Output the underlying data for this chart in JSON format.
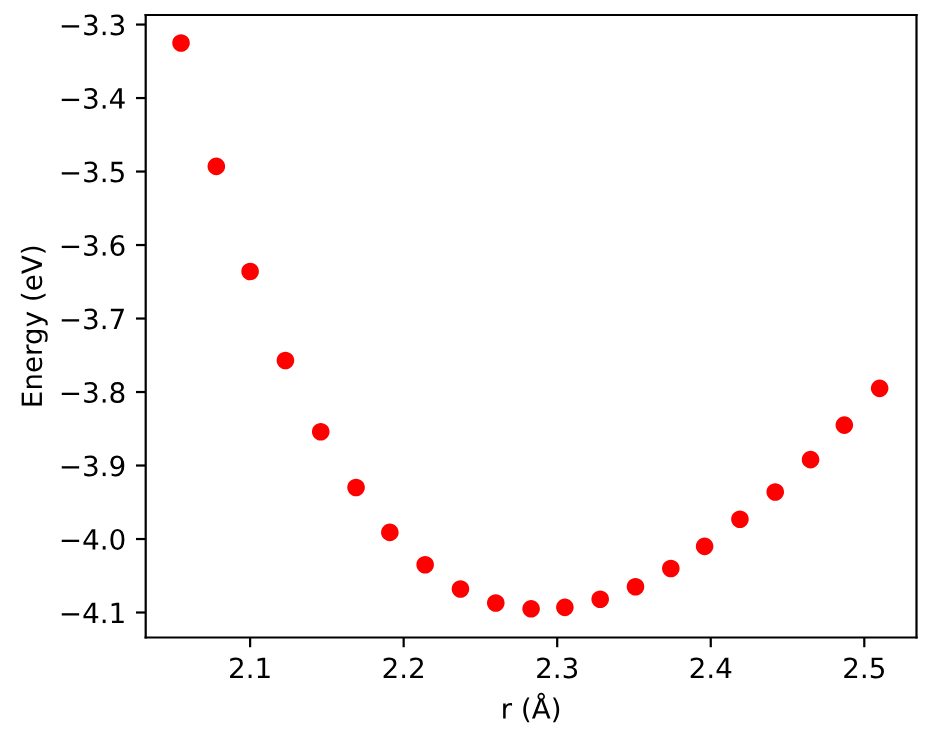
{
  "chart_data": {
    "type": "scatter",
    "xlabel": "r (Å)",
    "ylabel": "Energy (eV)",
    "x": [
      2.055,
      2.078,
      2.1,
      2.123,
      2.146,
      2.169,
      2.191,
      2.214,
      2.237,
      2.26,
      2.283,
      2.305,
      2.328,
      2.351,
      2.374,
      2.396,
      2.419,
      2.442,
      2.465,
      2.487,
      2.51
    ],
    "values": [
      -3.325,
      -3.493,
      -3.636,
      -3.757,
      -3.854,
      -3.93,
      -3.991,
      -4.035,
      -4.068,
      -4.087,
      -4.095,
      -4.093,
      -4.082,
      -4.065,
      -4.04,
      -4.01,
      -3.973,
      -3.936,
      -3.892,
      -3.845,
      -3.795
    ],
    "color": "#ff0000",
    "marker": "circle",
    "xlim": [
      2.032,
      2.534
    ],
    "xticks": [
      2.1,
      2.2,
      2.3,
      2.4,
      2.5
    ],
    "ylim": [
      -4.134,
      -3.287
    ],
    "yticks": [
      -4.1,
      {
        "value": -4,
        "label": "−4.0"
      },
      -3.9,
      -3.8,
      -3.7,
      -3.6,
      -3.5,
      -3.4,
      -3.3
    ],
    "grid": false
  }
}
